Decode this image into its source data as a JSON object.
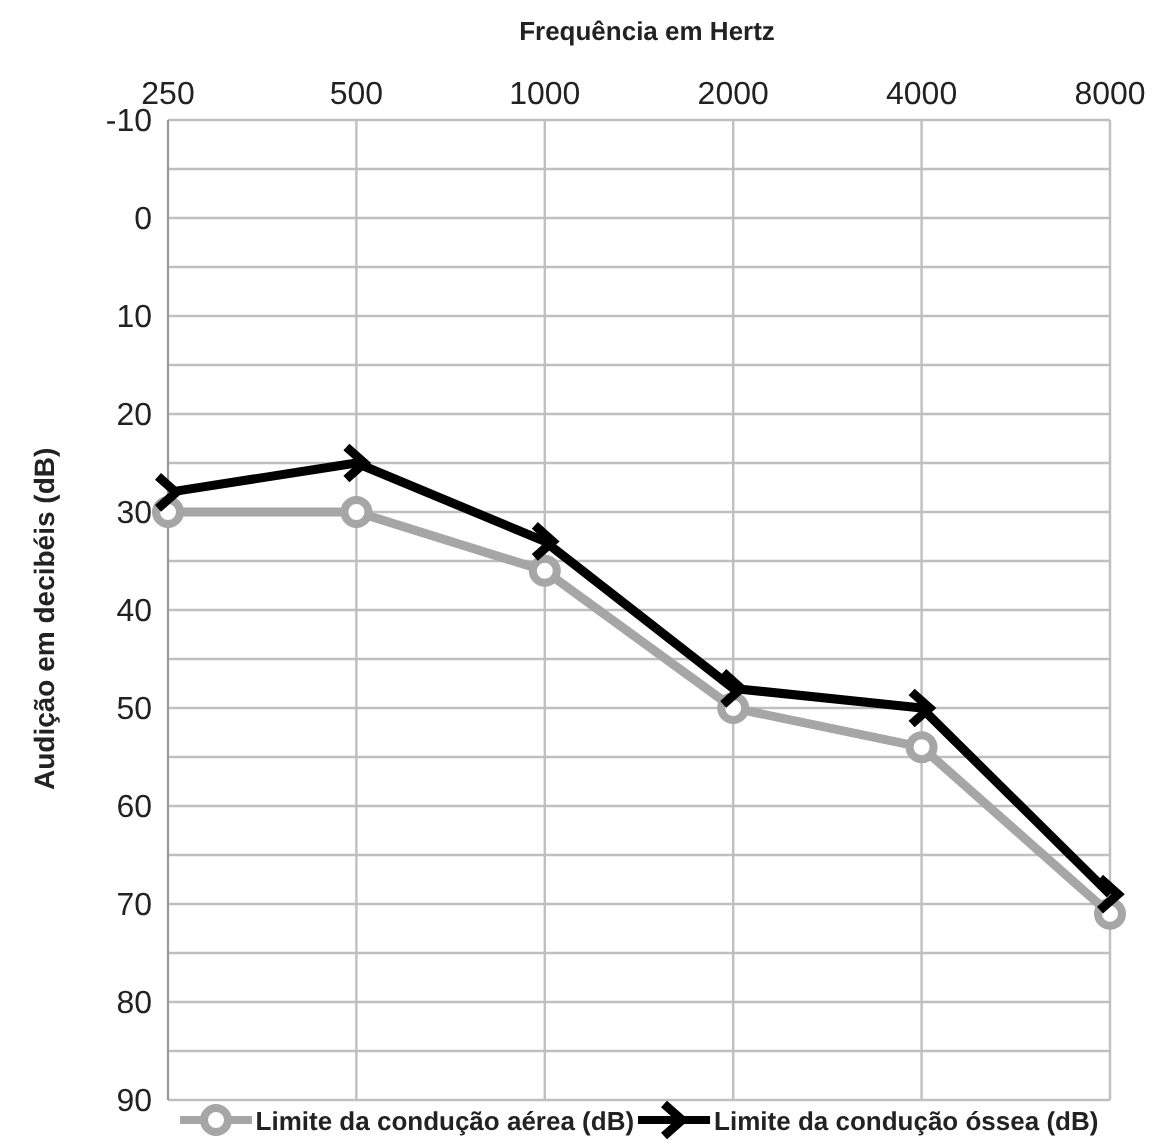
{
  "chart_data": {
    "type": "line",
    "xlabel": "Frequência em Hertz",
    "ylabel": "Audição em decibéis (dB)",
    "categories": [
      "250",
      "500",
      "1000",
      "2000",
      "4000",
      "8000"
    ],
    "series": [
      {
        "name": "Limite da condução aérea (dB)",
        "color": "#a6a6a6",
        "marker": "circle",
        "values": [
          30,
          30,
          36,
          50,
          54,
          71
        ]
      },
      {
        "name": "Limite da condução óssea (dB)",
        "color": "#000000",
        "marker": "cross",
        "values": [
          28,
          25,
          33,
          48,
          50,
          69
        ]
      }
    ],
    "ylim": [
      90,
      -10
    ],
    "yticks": [
      -10,
      {
        "value": -5,
        "label": null
      },
      0,
      {
        "value": 5,
        "label": null
      },
      10,
      {
        "value": 15,
        "label": null
      },
      20,
      {
        "value": 25,
        "label": null
      },
      30,
      {
        "value": 35,
        "label": null
      },
      40,
      {
        "value": 45,
        "label": null
      },
      50,
      {
        "value": 55,
        "label": null
      },
      60,
      {
        "value": 65,
        "label": null
      },
      70,
      {
        "value": 75,
        "label": null
      },
      80,
      {
        "value": 85,
        "label": null
      },
      90
    ],
    "grid": true,
    "legend": "bottom",
    "line_style": "solid"
  }
}
